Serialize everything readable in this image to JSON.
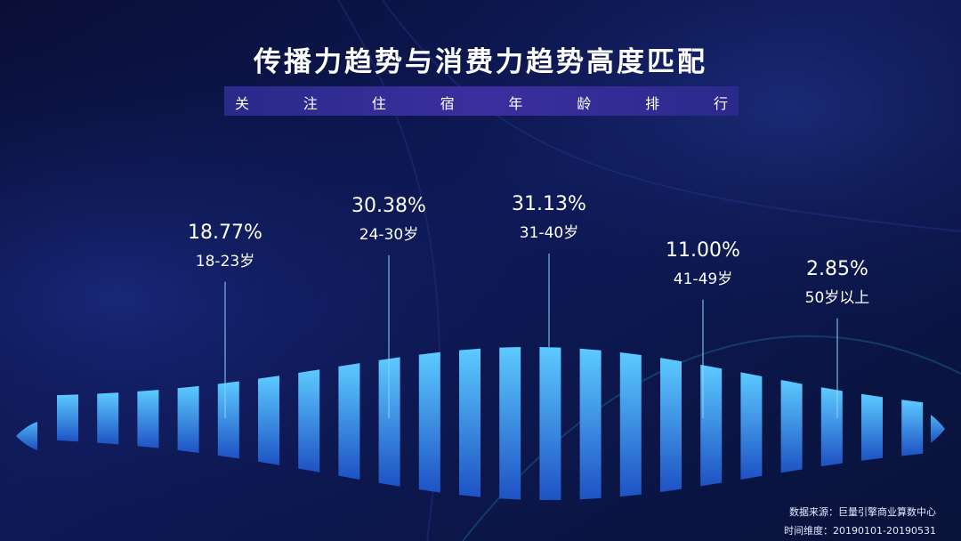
{
  "title": "传播力趋势与消费力趋势高度匹配",
  "subtitle": "关 注 住 宿 年 龄 排 行",
  "footer": {
    "source": "数据来源：巨量引擎商业算数中心",
    "time": "时间维度：20190101-20190531"
  },
  "colors": {
    "background": "#0b1240",
    "bar_top": "#59c6ff",
    "bar_bottom": "#1f56c8",
    "leader": "#8fd3ff",
    "text": "#ffffff"
  },
  "chart_data": {
    "type": "bar",
    "categories": [
      "18-23岁",
      "24-30岁",
      "31-40岁",
      "41-49岁",
      "50岁以上"
    ],
    "values": [
      18.77,
      30.38,
      31.13,
      11.0,
      2.85
    ],
    "value_labels": [
      "18.77%",
      "30.38%",
      "31.13%",
      "11.00%",
      "2.85%"
    ],
    "title": "传播力趋势与消费力趋势高度匹配",
    "subtitle": "关注住宿年龄排行",
    "xlabel": "",
    "ylabel": "",
    "grid": false,
    "legend": "none"
  }
}
